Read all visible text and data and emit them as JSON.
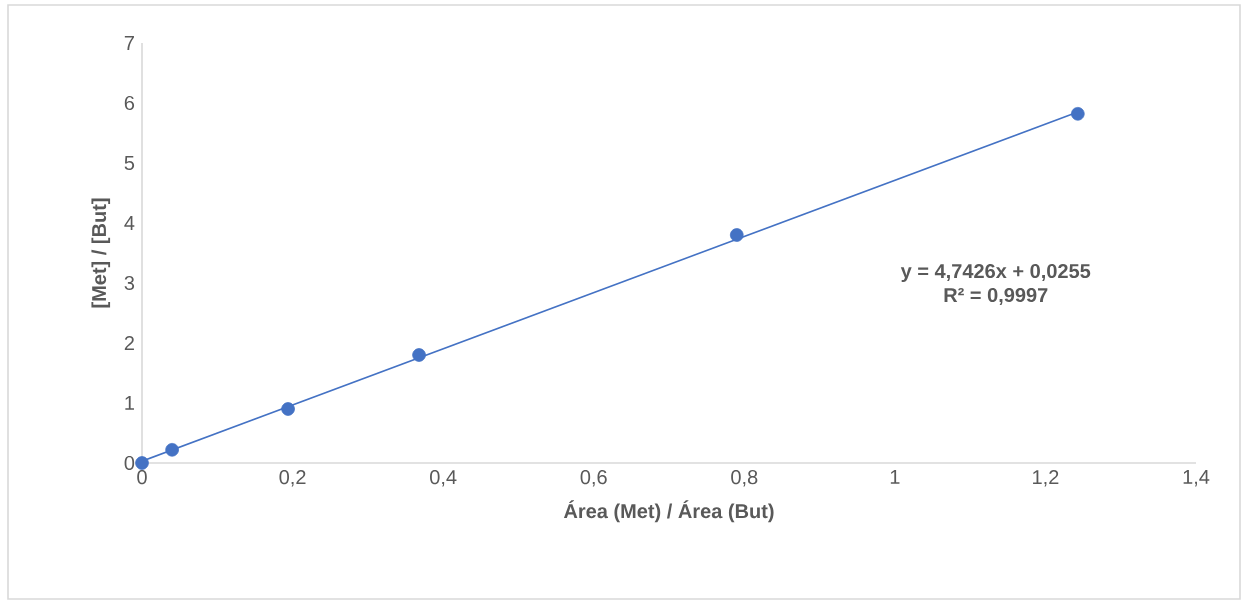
{
  "chart_data": {
    "type": "scatter",
    "xlabel": "Área (Met) / Área (But)",
    "ylabel": "[Met] / [But]",
    "x": [
      0,
      0.04,
      0.194,
      0.368,
      0.79,
      1.243
    ],
    "series": [
      {
        "color": "#4472c4",
        "values": [
          0,
          0.22,
          0.9,
          1.8,
          3.8,
          5.82
        ],
        "marker": "circle"
      },
      {
        "type": "line",
        "color": "#4472c4",
        "x": [
          0,
          1.243
        ],
        "values": [
          0.03,
          5.85
        ],
        "marker": "none"
      }
    ],
    "xlim": [
      0,
      1.4
    ],
    "ylim": [
      0,
      7
    ],
    "xticks": [
      0,
      {
        "value": 0.2,
        "label": "0,2"
      },
      {
        "value": 0.4,
        "label": "0,4"
      },
      {
        "value": 0.6,
        "label": "0,6"
      },
      {
        "value": 0.8,
        "label": "0,8"
      },
      1,
      {
        "value": 1.2,
        "label": "1,2"
      },
      {
        "value": 1.4,
        "label": "1,4"
      }
    ],
    "yticks": [
      0,
      1,
      2,
      3,
      4,
      5,
      6,
      7
    ],
    "grid": false,
    "legend": false,
    "annotations": [
      "y = 4,7426x + 0,0255",
      "R² = 0,9997"
    ]
  }
}
